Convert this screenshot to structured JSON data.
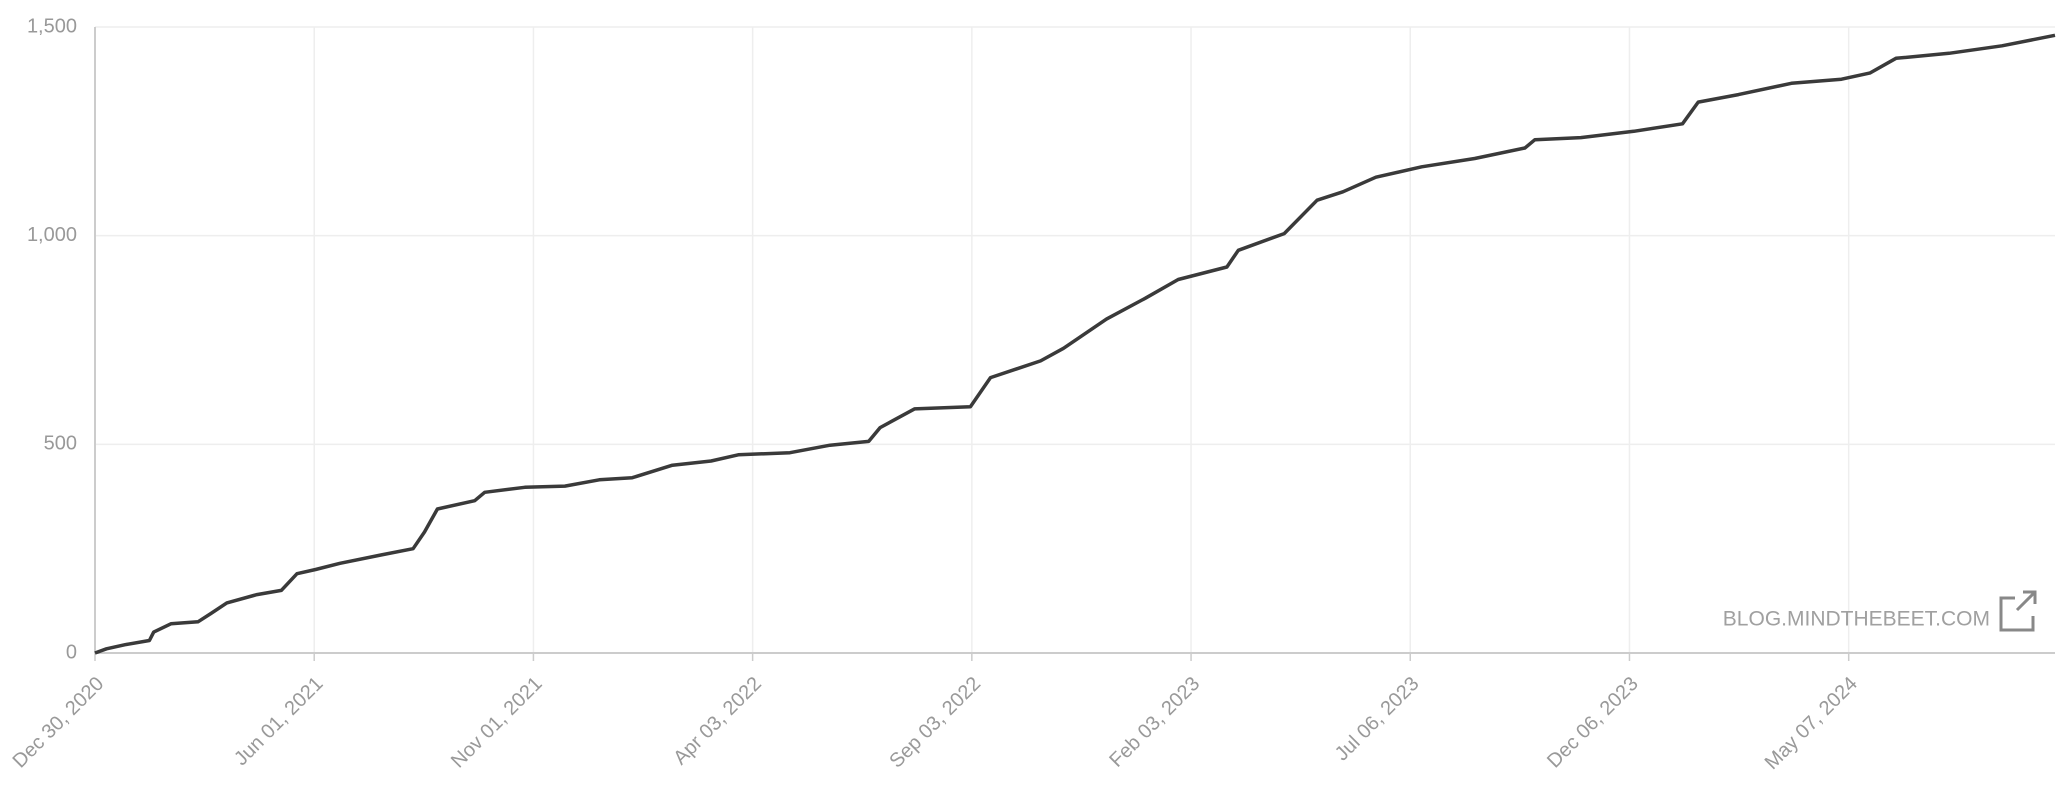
{
  "chart_data": {
    "type": "line",
    "watermark": "BLOG.MINDTHEBEET.COM",
    "x": [
      "2020-12-30",
      "2021-01-07",
      "2021-01-20",
      "2021-02-06",
      "2021-02-09",
      "2021-02-21",
      "2021-03-12",
      "2021-03-21",
      "2021-04-01",
      "2021-04-22",
      "2021-05-09",
      "2021-05-20",
      "2021-06-02",
      "2021-06-19",
      "2021-07-18",
      "2021-08-09",
      "2021-08-17",
      "2021-08-26",
      "2021-09-21",
      "2021-09-28",
      "2021-10-26",
      "2021-11-23",
      "2021-12-17",
      "2022-01-09",
      "2022-02-06",
      "2022-03-05",
      "2022-03-24",
      "2022-04-29",
      "2022-05-27",
      "2022-06-23",
      "2022-07-01",
      "2022-07-25",
      "2022-09-02",
      "2022-09-16",
      "2022-10-21",
      "2022-11-06",
      "2022-12-06",
      "2023-01-02",
      "2023-01-25",
      "2023-02-28",
      "2023-03-08",
      "2023-04-09",
      "2023-05-02",
      "2023-05-20",
      "2023-06-12",
      "2023-07-14",
      "2023-08-20",
      "2023-09-24",
      "2023-10-01",
      "2023-11-02",
      "2023-12-09",
      "2024-01-12",
      "2024-01-23",
      "2024-02-20",
      "2024-03-28",
      "2024-05-02",
      "2024-05-22",
      "2024-06-09",
      "2024-07-16",
      "2024-08-22",
      "2024-09-28"
    ],
    "values": [
      0,
      10,
      20,
      30,
      50,
      70,
      75,
      95,
      120,
      140,
      150,
      190,
      200,
      215,
      235,
      250,
      290,
      345,
      365,
      385,
      397,
      400,
      415,
      420,
      450,
      460,
      475,
      480,
      498,
      507,
      540,
      585,
      590,
      660,
      700,
      730,
      800,
      850,
      895,
      925,
      965,
      1005,
      1085,
      1105,
      1140,
      1165,
      1185,
      1210,
      1230,
      1235,
      1250,
      1268,
      1320,
      1338,
      1365,
      1375,
      1390,
      1425,
      1437,
      1455,
      1480
    ],
    "color": "#3a3a3a",
    "xlim": [
      "2020-12-30",
      "2024-09-28"
    ],
    "xticks": [
      {
        "value": "2020-12-30",
        "label": "Dec 30, 2020"
      },
      {
        "value": "2021-06-01",
        "label": "Jun 01, 2021"
      },
      {
        "value": "2021-11-01",
        "label": "Nov 01, 2021"
      },
      {
        "value": "2022-04-03",
        "label": "Apr 03, 2022"
      },
      {
        "value": "2022-09-03",
        "label": "Sep 03, 2022"
      },
      {
        "value": "2023-02-03",
        "label": "Feb 03, 2023"
      },
      {
        "value": "2023-07-06",
        "label": "Jul 06, 2023"
      },
      {
        "value": "2023-12-06",
        "label": "Dec 06, 2023"
      },
      {
        "value": "2024-05-07",
        "label": "May 07, 2024"
      }
    ],
    "ylim": [
      0,
      1500
    ],
    "yticks": [
      0,
      500,
      {
        "value": 1000,
        "label": "1,000"
      },
      {
        "value": 1500,
        "label": "1,500"
      }
    ],
    "grid": true
  }
}
